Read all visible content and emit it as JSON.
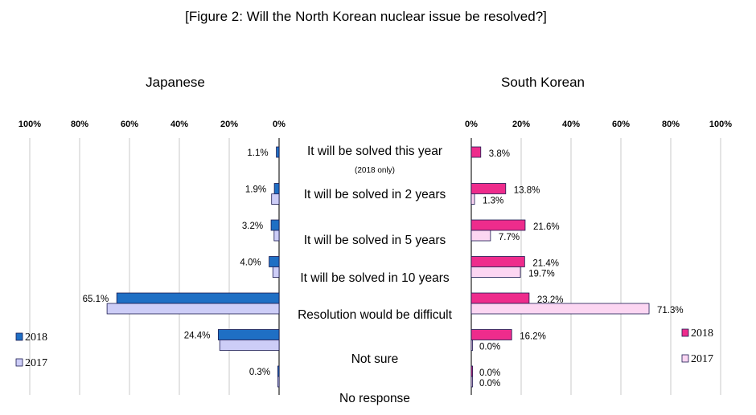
{
  "chart_data": {
    "type": "bar",
    "title": "[Figure 2: Will the North Korean nuclear issue be resolved?]",
    "categories": [
      "It will be solved this year",
      "It will be solved in 2 years",
      "It will be solved in 5 years",
      "It will be solved in 10 years",
      "Resolution would be difficult",
      "Not sure",
      "No response"
    ],
    "category_note": "(2018 only)",
    "tick_labels": [
      "0%",
      "20%",
      "40%",
      "60%",
      "80%",
      "100%"
    ],
    "xlim": [
      0,
      100
    ],
    "grid": true,
    "colors": {
      "jp2018": "#1f6fc4",
      "jp2017": "#cdcdf7",
      "kr2018": "#ee2c8c",
      "kr2017": "#fcd6f2",
      "border": "#1a1a50"
    },
    "panels": [
      {
        "name": "Japanese",
        "direction": "left",
        "legend_position": "bottom-left",
        "series": [
          {
            "name": "2018",
            "values": [
              1.1,
              1.9,
              3.2,
              4.0,
              65.1,
              24.4,
              0.3
            ]
          },
          {
            "name": "2017",
            "values": [
              null,
              3.0,
              2.0,
              2.5,
              69.0,
              23.8,
              0.3
            ]
          }
        ],
        "value_labels": [
          {
            "text": "1.1%",
            "category": 0,
            "series": 0
          },
          {
            "text": "1.9%",
            "category": 1,
            "series": 0
          },
          {
            "text": "3.2%",
            "category": 2,
            "series": 0
          },
          {
            "text": "4.0%",
            "category": 3,
            "series": 0
          },
          {
            "text": "65.1%",
            "category": 4,
            "series": 0
          },
          {
            "text": "24.4%",
            "category": 5,
            "series": 0
          },
          {
            "text": "0.3%",
            "category": 6,
            "series": 0
          }
        ]
      },
      {
        "name": "South Korean",
        "direction": "right",
        "legend_position": "bottom-right",
        "series": [
          {
            "name": "2018",
            "values": [
              3.8,
              13.8,
              21.6,
              21.4,
              23.2,
              16.2,
              0.0
            ]
          },
          {
            "name": "2017",
            "values": [
              null,
              1.3,
              7.7,
              19.7,
              71.3,
              0.0,
              0.0
            ]
          }
        ],
        "value_labels": [
          {
            "text": "3.8%",
            "category": 0,
            "series": 0
          },
          {
            "text": "13.8%",
            "category": 1,
            "series": 0
          },
          {
            "text": "1.3%",
            "category": 1,
            "series": 1
          },
          {
            "text": "21.6%",
            "category": 2,
            "series": 0
          },
          {
            "text": "7.7%",
            "category": 2,
            "series": 1
          },
          {
            "text": "21.4%",
            "category": 3,
            "series": 0
          },
          {
            "text": "19.7%",
            "category": 3,
            "series": 1
          },
          {
            "text": "23.2%",
            "category": 4,
            "series": 0
          },
          {
            "text": "71.3%",
            "category": 4,
            "series": 1
          },
          {
            "text": "16.2%",
            "category": 5,
            "series": 0
          },
          {
            "text": "0.0%",
            "category": 5,
            "series": 1
          },
          {
            "text": "0.0%",
            "category": 6,
            "series": 0
          },
          {
            "text": "0.0%",
            "category": 6,
            "series": 1
          }
        ]
      }
    ]
  }
}
